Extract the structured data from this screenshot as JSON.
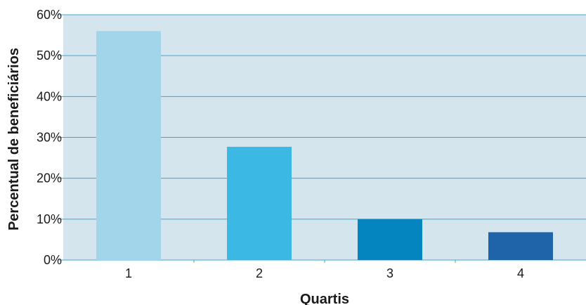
{
  "chart_data": {
    "type": "bar",
    "title": "",
    "xlabel": "Quartis",
    "ylabel": "Percentual de beneficiários",
    "categories": [
      "1",
      "2",
      "3",
      "4"
    ],
    "values": [
      56,
      27.7,
      10,
      6.8
    ],
    "ylim": [
      0,
      60
    ],
    "yticks": [
      "0%",
      "10%",
      "20%",
      "30%",
      "40%",
      "50%",
      "60%"
    ],
    "grid": true,
    "legend": "none",
    "colors": {
      "plot_background": "#d5e5ee",
      "gridline": "#3ba7d6",
      "bars": [
        "#a3d5ea",
        "#3bb8e3",
        "#0585c0",
        "#1f63a9"
      ]
    }
  }
}
